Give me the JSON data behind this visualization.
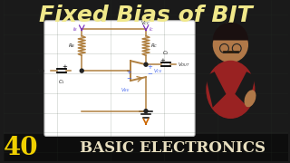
{
  "bg_color": "#1a1a1a",
  "title_text": "Fixed Bias of BJT",
  "title_color": "#f0e88a",
  "title_fontsize": 18,
  "number_text": "40",
  "number_color": "#f0d000",
  "bottom_text": "BASIC ELECTRONICS",
  "bottom_color": "#e8dfc0",
  "circuit_box_bg": "#ffffff",
  "circuit_box_border": "#cccccc",
  "wire_color": "#b08040",
  "arrow_color": "#7b2fbe",
  "ground_color": "#cc6600",
  "blue_color": "#4466ee",
  "dot_color": "#222222",
  "resistor_color": "#b08040",
  "bjt_color": "#b08040",
  "text_color": "#222222"
}
